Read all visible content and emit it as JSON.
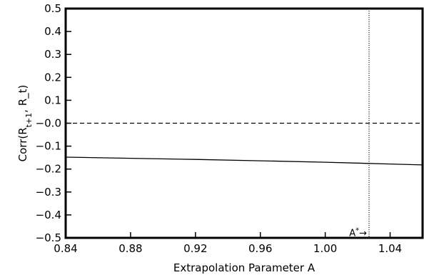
{
  "chart_data": {
    "type": "line",
    "xlabel": "Extrapolation Parameter A",
    "ylabel": "Corr(R_{t+1}, R_t)",
    "xlim": [
      0.84,
      1.06
    ],
    "ylim": [
      -0.5,
      0.5
    ],
    "x_ticks": [
      0.84,
      0.88,
      0.92,
      0.96,
      1.0,
      1.04
    ],
    "y_ticks": [
      -0.5,
      -0.4,
      -0.3,
      -0.2,
      -0.1,
      0.0,
      0.1,
      0.2,
      0.3,
      0.4,
      0.5
    ],
    "x_tick_labels": [
      "0.84",
      "0.88",
      "0.92",
      "0.96",
      "1.00",
      "1.04"
    ],
    "y_tick_labels": [
      "−0.5",
      "−0.4",
      "−0.3",
      "−0.2",
      "−0.1",
      "−0.0",
      "0.1",
      "0.2",
      "0.3",
      "0.4",
      "0.5"
    ],
    "series": [
      {
        "style": "solid",
        "x": [
          0.84,
          0.88,
          0.92,
          0.96,
          1.0,
          1.04,
          1.06
        ],
        "y": [
          -0.148,
          -0.153,
          -0.158,
          -0.164,
          -0.17,
          -0.178,
          -0.182
        ]
      },
      {
        "style": "dashed",
        "x": [
          0.84,
          1.06
        ],
        "y": [
          0.0,
          0.0
        ]
      }
    ],
    "vline": {
      "x": 1.027,
      "style": "dotted"
    },
    "annotation": {
      "text": "A",
      "sup": "*",
      "arrow": "→",
      "x": 1.027,
      "y": -0.47
    },
    "grid": false
  }
}
